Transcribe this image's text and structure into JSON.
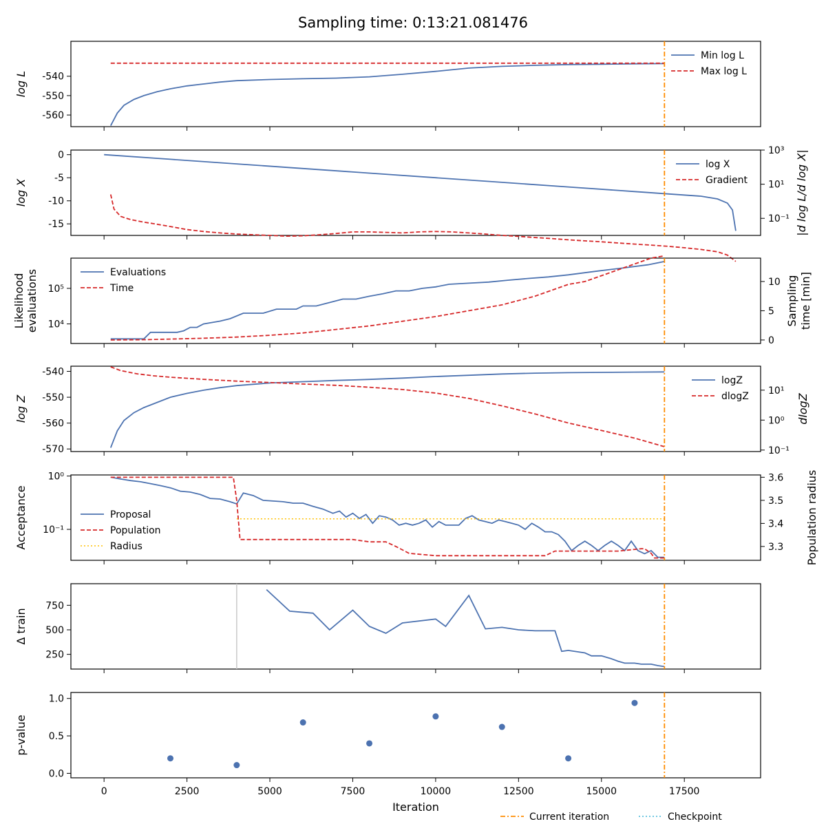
{
  "title": "Sampling time: 0:13:21.081476",
  "xlabel": "Iteration",
  "xticks": [
    0,
    2500,
    5000,
    7500,
    10000,
    12500,
    15000,
    17500
  ],
  "colors": {
    "blue": "#4c72b0",
    "red": "#d62728",
    "orange": "#ff8c00",
    "gold": "#ffc000",
    "cyan": "#5bc0de",
    "grey": "#c8c8c8"
  },
  "legend_bottom": {
    "current": "Current iteration",
    "checkpoint": "Checkpoint"
  },
  "chart_data": [
    {
      "type": "line",
      "ylabel": "log L",
      "ylim": [
        -566,
        -522
      ],
      "yticks": [
        -540,
        -550,
        -560
      ],
      "series": [
        {
          "name": "Min log L",
          "x": [
            200,
            400,
            600,
            900,
            1200,
            1600,
            2000,
            2500,
            3000,
            3500,
            4000,
            5000,
            6000,
            7000,
            8000,
            9000,
            10000,
            11000,
            12000,
            13000,
            14000,
            15000,
            16000,
            16900
          ],
          "y": [
            -565.5,
            -559,
            -555,
            -552,
            -550,
            -548,
            -546.5,
            -545,
            -544,
            -543,
            -542.3,
            -541.7,
            -541.3,
            -541,
            -540.3,
            -539,
            -537.5,
            -535.8,
            -534.9,
            -534.4,
            -534,
            -533.8,
            -533.6,
            -533.5
          ]
        },
        {
          "name": "Max log L",
          "x": [
            200,
            16900
          ],
          "y": [
            -533.3,
            -533.3
          ]
        }
      ]
    },
    {
      "type": "line",
      "ylabel": "log X",
      "ylabel_right": "|d log L/d log X|",
      "ylim": [
        -17.5,
        1
      ],
      "yticks": [
        0,
        -5,
        -10,
        -15
      ],
      "y2_log_range": [
        -2,
        3
      ],
      "y2_ticks": [
        "10³",
        "10¹",
        "10⁻¹"
      ],
      "series": [
        {
          "name": "log X",
          "x": [
            0,
            2000,
            4000,
            6000,
            8000,
            10000,
            12000,
            14000,
            16000,
            17000,
            18000,
            18500,
            18800,
            18950,
            19050
          ],
          "y": [
            0,
            -1,
            -2,
            -3,
            -4,
            -5,
            -6,
            -7,
            -8,
            -8.5,
            -9,
            -9.6,
            -10.5,
            -12,
            -16.5
          ]
        },
        {
          "name": "Gradient",
          "x": [
            200,
            300,
            500,
            800,
            1200,
            1600,
            2000,
            2500,
            3000,
            3500,
            4000,
            4500,
            5000,
            5500,
            6000,
            6500,
            7000,
            7500,
            8000,
            8500,
            9000,
            9500,
            10000,
            10500,
            11000,
            11500,
            12000,
            12500,
            13000,
            13500,
            14000,
            14500,
            15000,
            15500,
            16000,
            16500,
            17000,
            17500,
            18000,
            18500,
            18800,
            19050
          ],
          "y": [
            2.5,
            0.35,
            0.13,
            0.085,
            0.06,
            0.045,
            0.033,
            0.022,
            0.017,
            0.014,
            0.012,
            0.011,
            0.01,
            0.009,
            0.0095,
            0.011,
            0.013,
            0.016,
            0.016,
            0.015,
            0.014,
            0.016,
            0.017,
            0.016,
            0.014,
            0.012,
            0.01,
            0.0088,
            0.0075,
            0.0065,
            0.0055,
            0.0048,
            0.0042,
            0.0036,
            0.0031,
            0.0027,
            0.0023,
            0.0019,
            0.0015,
            0.0011,
            0.0007,
            0.0003
          ]
        }
      ]
    },
    {
      "type": "line",
      "ylabel": "Likelihood evaluations",
      "ylabel_right": "Sampling time [min]",
      "y_log_range": [
        3.45,
        5.85
      ],
      "yticks": [
        "10⁵",
        "10⁴"
      ],
      "y2lim": [
        -0.6,
        14
      ],
      "y2ticks": [
        0,
        5,
        10
      ],
      "series": [
        {
          "name": "Evaluations",
          "x": [
            200,
            1200,
            1400,
            2200,
            2400,
            2600,
            2800,
            3000,
            3500,
            3800,
            4200,
            4800,
            5200,
            5800,
            6000,
            6400,
            6800,
            7200,
            7600,
            8000,
            8400,
            8800,
            9200,
            9600,
            10000,
            10400,
            11000,
            11600,
            12200,
            12800,
            13400,
            14000,
            14800,
            15600,
            16400,
            16900
          ],
          "y": [
            3800,
            3800,
            5800,
            5800,
            6400,
            8000,
            8000,
            10000,
            12000,
            14000,
            20000,
            20000,
            26000,
            26000,
            32000,
            32000,
            40000,
            50000,
            50000,
            60000,
            70000,
            85000,
            85000,
            100000,
            110000,
            130000,
            140000,
            150000,
            170000,
            190000,
            210000,
            240000,
            300000,
            370000,
            460000,
            570000
          ]
        },
        {
          "name": "Time",
          "x": [
            200,
            1200,
            2000,
            3000,
            4000,
            5000,
            6000,
            7000,
            8000,
            9000,
            10000,
            11000,
            12000,
            13000,
            14000,
            14500,
            15000,
            15500,
            16000,
            16500,
            16900
          ],
          "y": [
            0,
            0.05,
            0.15,
            0.3,
            0.5,
            0.8,
            1.2,
            1.8,
            2.4,
            3.2,
            4,
            5,
            6,
            7.5,
            9.5,
            10,
            11,
            12,
            13,
            14,
            14.4
          ]
        }
      ]
    },
    {
      "type": "line",
      "ylabel": "log Z",
      "ylabel_right": "dlogZ",
      "ylim": [
        -571,
        -538
      ],
      "yticks": [
        -540,
        -550,
        -560,
        -570
      ],
      "y2_log_range": [
        -1.05,
        1.8
      ],
      "y2_ticks": [
        "10¹",
        "10⁰",
        "10⁻¹"
      ],
      "series": [
        {
          "name": "logZ",
          "x": [
            200,
            400,
            600,
            900,
            1200,
            1600,
            2000,
            2500,
            3000,
            3500,
            4000,
            5000,
            6000,
            7000,
            8000,
            9000,
            10000,
            11000,
            12000,
            13000,
            14000,
            15000,
            16000,
            16900
          ],
          "y": [
            -569.5,
            -563,
            -559,
            -556,
            -554,
            -552,
            -550,
            -548.5,
            -547.3,
            -546.3,
            -545.5,
            -544.5,
            -544,
            -543.5,
            -543.1,
            -542.6,
            -542,
            -541.5,
            -541,
            -540.7,
            -540.5,
            -540.4,
            -540.3,
            -540.2
          ]
        },
        {
          "name": "dlogZ",
          "x": [
            200,
            500,
            1000,
            1500,
            2000,
            3000,
            4000,
            5000,
            6000,
            7000,
            8000,
            9000,
            10000,
            11000,
            12000,
            13000,
            14000,
            15000,
            16000,
            16900
          ],
          "y": [
            60,
            45,
            35,
            30,
            27,
            23,
            20,
            18,
            16,
            14.5,
            12.5,
            10.5,
            8,
            5.3,
            3,
            1.6,
            0.8,
            0.45,
            0.25,
            0.13
          ]
        }
      ]
    },
    {
      "type": "line",
      "ylabel": "Acceptance",
      "ylabel_right": "Population radius",
      "y_log_range": [
        -1.58,
        0.02
      ],
      "yticks": [
        "10⁰",
        "10⁻¹"
      ],
      "y2lim": [
        3.24,
        3.61
      ],
      "y2ticks": [
        3.3,
        3.4,
        3.5,
        3.6
      ],
      "series": [
        {
          "name": "Proposal",
          "x": [
            200,
            500,
            800,
            1100,
            1400,
            1700,
            2000,
            2300,
            2600,
            2900,
            3200,
            3500,
            3800,
            4000,
            4200,
            4500,
            4800,
            5100,
            5400,
            5700,
            6000,
            6300,
            6600,
            6900,
            7100,
            7300,
            7500,
            7700,
            7900,
            8100,
            8300,
            8500,
            8700,
            8900,
            9100,
            9300,
            9500,
            9700,
            9900,
            10100,
            10300,
            10500,
            10700,
            10900,
            11100,
            11300,
            11500,
            11700,
            11900,
            12100,
            12300,
            12500,
            12700,
            12900,
            13100,
            13300,
            13500,
            13700,
            13900,
            14100,
            14300,
            14500,
            14700,
            14900,
            15100,
            15300,
            15500,
            15700,
            15900,
            16100,
            16300,
            16500,
            16700,
            16900
          ],
          "y": [
            0.95,
            0.88,
            0.82,
            0.78,
            0.72,
            0.66,
            0.6,
            0.52,
            0.5,
            0.45,
            0.38,
            0.37,
            0.33,
            0.3,
            0.48,
            0.43,
            0.35,
            0.34,
            0.33,
            0.31,
            0.31,
            0.27,
            0.24,
            0.2,
            0.22,
            0.17,
            0.2,
            0.16,
            0.19,
            0.13,
            0.18,
            0.17,
            0.15,
            0.12,
            0.13,
            0.12,
            0.13,
            0.15,
            0.11,
            0.14,
            0.12,
            0.12,
            0.12,
            0.16,
            0.18,
            0.15,
            0.14,
            0.13,
            0.15,
            0.14,
            0.13,
            0.12,
            0.1,
            0.13,
            0.11,
            0.09,
            0.09,
            0.08,
            0.06,
            0.04,
            0.05,
            0.06,
            0.05,
            0.04,
            0.05,
            0.06,
            0.05,
            0.04,
            0.06,
            0.04,
            0.035,
            0.04,
            0.03,
            0.03
          ]
        },
        {
          "name": "Population",
          "x": [
            200,
            3900,
            4000,
            4100,
            7500,
            8000,
            8500,
            8800,
            9200,
            10000,
            11000,
            12000,
            13000,
            13300,
            13600,
            14000,
            15000,
            15500,
            16200,
            16300,
            16500,
            16600,
            16900
          ],
          "y": [
            3.6,
            3.6,
            3.5,
            3.33,
            3.33,
            3.32,
            3.32,
            3.3,
            3.27,
            3.26,
            3.26,
            3.26,
            3.26,
            3.26,
            3.28,
            3.28,
            3.28,
            3.28,
            3.29,
            3.29,
            3.27,
            3.25,
            3.25
          ]
        },
        {
          "name": "Radius",
          "x": [
            4000,
            16900
          ],
          "y": [
            3.42,
            3.42
          ]
        }
      ]
    },
    {
      "type": "line",
      "ylabel": "Δ train",
      "ylim": [
        100,
        970
      ],
      "yticks": [
        250,
        500,
        750
      ],
      "series": [
        {
          "name": "",
          "x": [
            4900,
            5600,
            6300,
            6800,
            7500,
            8000,
            8500,
            9000,
            10000,
            10300,
            11000,
            11500,
            12000,
            12500,
            13000,
            13100,
            13600,
            13800,
            14000,
            14500,
            14700,
            15000,
            15300,
            15500,
            15700,
            16000,
            16200,
            16500,
            16700,
            16900
          ],
          "y": [
            910,
            690,
            670,
            500,
            700,
            535,
            465,
            570,
            610,
            535,
            850,
            510,
            525,
            500,
            490,
            490,
            490,
            280,
            290,
            265,
            235,
            235,
            205,
            180,
            160,
            160,
            150,
            150,
            135,
            125
          ]
        }
      ]
    },
    {
      "type": "scatter",
      "ylabel": "p-value",
      "ylim": [
        -0.06,
        1.08
      ],
      "yticks": [
        0.0,
        0.5,
        1.0
      ],
      "series": [
        {
          "name": "",
          "x": [
            2000,
            4000,
            6000,
            8000,
            10000,
            12000,
            14000,
            16000
          ],
          "y": [
            0.2,
            0.11,
            0.68,
            0.4,
            0.76,
            0.62,
            0.2,
            0.94
          ]
        }
      ]
    }
  ],
  "checkpoint_x": 4000,
  "current_iteration": 16900
}
